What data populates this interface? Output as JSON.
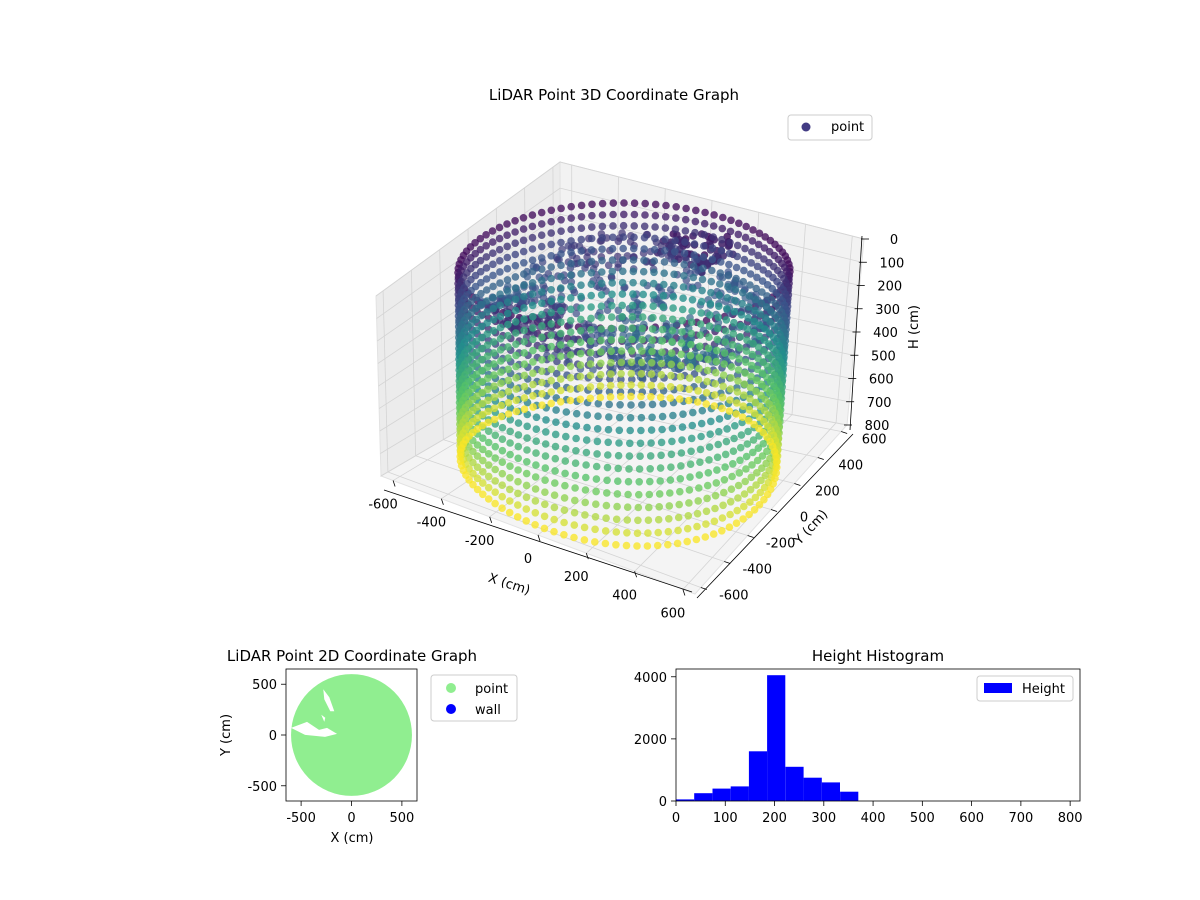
{
  "chart_data": [
    {
      "type": "scatter",
      "title": "LiDAR Point 3D Coordinate Graph",
      "projection": "3d",
      "xlabel": "X (cm)",
      "ylabel": "Y (cm)",
      "zlabel": "H (cm)",
      "xlim": [
        -650,
        650
      ],
      "ylim": [
        -650,
        650
      ],
      "zlim": [
        0,
        800
      ],
      "z_inverted": true,
      "x_ticks": [
        "-600",
        "-400",
        "-200",
        "0",
        "200",
        "400",
        "600"
      ],
      "y_ticks": [
        "-600",
        "-400",
        "-200",
        "0",
        "200",
        "400",
        "600"
      ],
      "z_ticks": [
        "0",
        "100",
        "200",
        "300",
        "400",
        "500",
        "600",
        "700",
        "800"
      ],
      "legend": [
        "point"
      ],
      "legend_position": "top-right",
      "colormap": "viridis",
      "grid": true,
      "wall_radius": 600,
      "wall_height_range": [
        0,
        800
      ]
    },
    {
      "type": "scatter",
      "title": "LiDAR Point 2D Coordinate Graph",
      "xlabel": "X (cm)",
      "ylabel": "Y (cm)",
      "xlim": [
        -650,
        650
      ],
      "ylim": [
        -650,
        650
      ],
      "x_ticks": [
        "-500",
        "0",
        "500"
      ],
      "y_ticks": [
        "500",
        "0",
        "-500"
      ],
      "series": [
        {
          "name": "point",
          "color": "#90ee90",
          "shape": "disc",
          "radius": 600
        },
        {
          "name": "wall",
          "color": "#0000ff"
        }
      ],
      "legend_position": "outside-right",
      "grid": false
    },
    {
      "type": "bar",
      "title": "Height Histogram",
      "xlabel": "",
      "ylabel": "",
      "bin_edges": [
        0,
        37,
        74,
        111,
        148,
        185,
        222,
        259,
        296,
        333,
        370,
        407,
        444,
        481,
        518,
        555,
        592,
        629,
        666,
        703,
        740,
        777,
        814
      ],
      "values": [
        50,
        250,
        400,
        470,
        1600,
        4050,
        1100,
        750,
        600,
        300,
        0,
        0,
        0,
        0,
        0,
        0,
        0,
        0,
        0,
        0,
        0,
        0
      ],
      "xlim": [
        0,
        820
      ],
      "ylim": [
        0,
        4250
      ],
      "x_ticks": [
        "0",
        "100",
        "200",
        "300",
        "400",
        "500",
        "600",
        "700",
        "800"
      ],
      "y_ticks": [
        "0",
        "2000",
        "4000"
      ],
      "series": [
        {
          "name": "Height",
          "color": "#0000ff"
        }
      ],
      "legend_position": "top-right",
      "grid": false
    }
  ]
}
